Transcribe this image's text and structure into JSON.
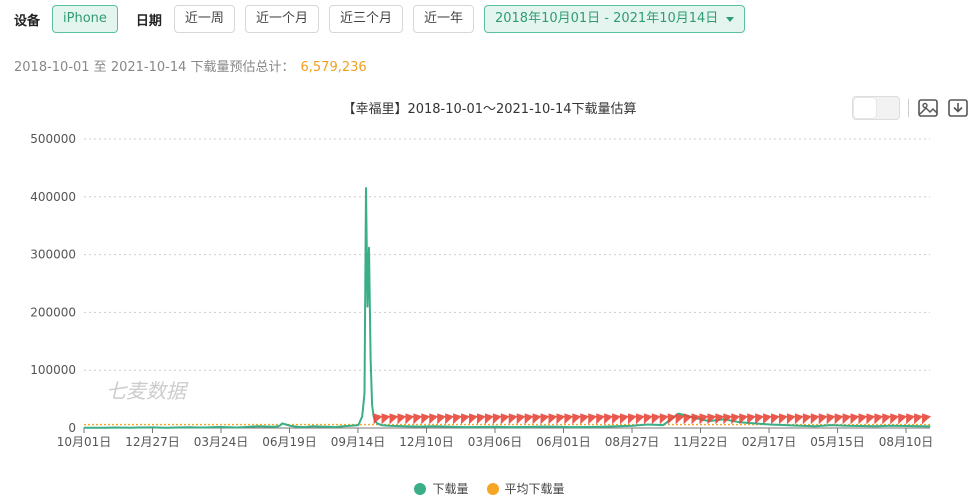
{
  "filters": {
    "device_label": "设备",
    "device_option": "iPhone",
    "date_label": "日期",
    "date_buttons": [
      "近一周",
      "近一个月",
      "近三个月",
      "近一年"
    ],
    "date_range": "2018年10月01日 - 2021年10月14日"
  },
  "summary": {
    "text": "2018-10-01 至 2021-10-14 下载量预估总计：",
    "value": "6,579,236"
  },
  "toolbox": {
    "icons": [
      "chart-toggle-icon",
      "image-icon",
      "download-icon"
    ]
  },
  "watermark": "七麦数据",
  "colors": {
    "accent": "#3aae86",
    "avg": "#f5a623",
    "marker": "#e8473b"
  },
  "chart_data": {
    "type": "line",
    "title": "【幸福里】2018-10-01～2021-10-14下载量估算",
    "xlabel": "",
    "ylabel": "",
    "ylim": [
      0,
      500000
    ],
    "yticks": [
      "0",
      "100000",
      "200000",
      "300000",
      "400000",
      "500000"
    ],
    "xticks": [
      "10月01日",
      "12月27日",
      "03月24日",
      "06月19日",
      "09月14日",
      "12月10日",
      "03月06日",
      "06月01日",
      "08月27日",
      "11月22日",
      "02月17日",
      "05月15日",
      "08月10日"
    ],
    "grid": true,
    "legend_position": "bottom-center",
    "series": [
      {
        "name": "下载量",
        "x": [
          0,
          10,
          20,
          30,
          40,
          50,
          60,
          70,
          80,
          90,
          100,
          110,
          120,
          130,
          140,
          150,
          160,
          170,
          180,
          190,
          200,
          210,
          220,
          230,
          240,
          250,
          255,
          258,
          260,
          265,
          270,
          280,
          290,
          300,
          310,
          320,
          330,
          340,
          350,
          360,
          365,
          368,
          370,
          372,
          374,
          376,
          378,
          380,
          382,
          385,
          390,
          400,
          420,
          440,
          460,
          480,
          500,
          520,
          540,
          560,
          580,
          600,
          620,
          640,
          660,
          680,
          700,
          720,
          740,
          760,
          780,
          800,
          820,
          840,
          860,
          880,
          900,
          920,
          940,
          960,
          980,
          1000,
          1020,
          1040,
          1060,
          1080,
          1100,
          1110
        ],
        "values": [
          300,
          300,
          500,
          600,
          800,
          700,
          600,
          800,
          900,
          1000,
          700,
          600,
          800,
          1000,
          1200,
          900,
          800,
          1500,
          1800,
          1200,
          900,
          1500,
          2500,
          3000,
          2500,
          2000,
          3000,
          5000,
          8000,
          6000,
          4000,
          2000,
          1500,
          3000,
          2500,
          2000,
          1500,
          3000,
          4000,
          5000,
          20000,
          60000,
          415000,
          210000,
          312000,
          120000,
          40000,
          20000,
          12000,
          8000,
          5000,
          4000,
          3000,
          2500,
          3000,
          2000,
          1500,
          1800,
          2000,
          1500,
          1800,
          2500,
          2000,
          1500,
          1800,
          2000,
          3000,
          4000,
          6000,
          5000,
          25000,
          18000,
          12000,
          15000,
          10000,
          8000,
          6000,
          5000,
          4000,
          3000,
          5000,
          4000,
          3500,
          3000,
          4000,
          3500,
          3000,
          2800
        ]
      },
      {
        "name": "平均下载量",
        "x": [
          0,
          1110
        ],
        "values": [
          5900,
          5900
        ]
      }
    ],
    "x_axis_days": [
      0,
      1110
    ],
    "markers_start_day": 380,
    "markers_count": 70
  }
}
